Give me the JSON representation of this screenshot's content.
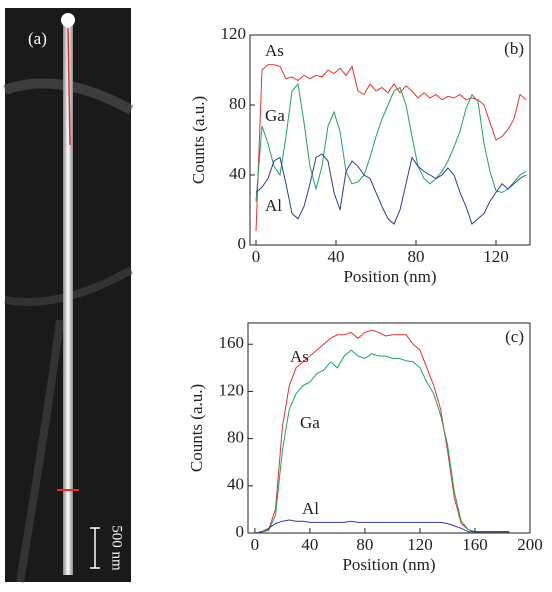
{
  "image_panel": {
    "label": "(a)",
    "scale_bar": "500 nm"
  },
  "chart_data": [
    {
      "type": "line",
      "panel_label": "(b)",
      "x_label": "Position (nm)",
      "y_label": "Counts (a.u.)",
      "xlim": [
        -3,
        137
      ],
      "ylim": [
        0,
        120
      ],
      "xticks": [
        0,
        40,
        80,
        120
      ],
      "yticks": [
        0,
        40,
        80,
        120
      ],
      "x": [
        0,
        3,
        6,
        9,
        12,
        15,
        18,
        21,
        24,
        27,
        30,
        33,
        36,
        39,
        42,
        45,
        48,
        51,
        54,
        57,
        60,
        63,
        66,
        69,
        72,
        75,
        78,
        81,
        84,
        87,
        90,
        93,
        96,
        99,
        102,
        105,
        108,
        111,
        114,
        117,
        120,
        123,
        126,
        129,
        132,
        135
      ],
      "series": [
        {
          "name": "As",
          "color": "#e8302c",
          "values": [
            8,
            100,
            103,
            103,
            102,
            95,
            96,
            94,
            97,
            95,
            97,
            96,
            100,
            98,
            101,
            97,
            102,
            88,
            86,
            92,
            88,
            90,
            87,
            92,
            87,
            91,
            88,
            84,
            87,
            84,
            86,
            83,
            85,
            84,
            86,
            83,
            84,
            83,
            80,
            70,
            60,
            62,
            66,
            72,
            86,
            83
          ]
        },
        {
          "name": "Ga",
          "color": "#1fa35a",
          "values": [
            25,
            68,
            58,
            45,
            40,
            62,
            88,
            92,
            70,
            45,
            32,
            45,
            68,
            76,
            65,
            42,
            35,
            36,
            40,
            50,
            62,
            72,
            80,
            88,
            90,
            80,
            62,
            45,
            38,
            35,
            38,
            42,
            48,
            56,
            65,
            78,
            86,
            82,
            58,
            42,
            31,
            30,
            32,
            36,
            40,
            42
          ]
        },
        {
          "name": "Al",
          "color": "#2c3a9c",
          "values": [
            30,
            33,
            38,
            48,
            50,
            35,
            18,
            15,
            22,
            35,
            50,
            52,
            48,
            30,
            20,
            42,
            48,
            45,
            40,
            38,
            30,
            22,
            15,
            12,
            20,
            35,
            50,
            45,
            42,
            40,
            38,
            40,
            44,
            40,
            30,
            22,
            12,
            15,
            18,
            25,
            30,
            35,
            32,
            35,
            38,
            40
          ]
        }
      ]
    },
    {
      "type": "line",
      "panel_label": "(c)",
      "x_label": "Position (nm)",
      "y_label": "Counts (a.u.)",
      "xlim": [
        -5,
        200
      ],
      "ylim": [
        0,
        178
      ],
      "xticks": [
        0,
        40,
        80,
        120,
        160,
        200
      ],
      "yticks": [
        0,
        40,
        80,
        120,
        160
      ],
      "x": [
        0,
        5,
        10,
        15,
        20,
        25,
        30,
        35,
        40,
        45,
        50,
        55,
        60,
        65,
        70,
        75,
        80,
        85,
        90,
        95,
        100,
        105,
        110,
        115,
        120,
        125,
        130,
        135,
        140,
        145,
        150,
        155,
        160,
        165,
        170,
        175,
        180,
        185
      ],
      "series": [
        {
          "name": "As",
          "color": "#e8302c",
          "values": [
            0,
            1,
            3,
            20,
            90,
            125,
            140,
            145,
            150,
            155,
            160,
            165,
            168,
            168,
            170,
            165,
            170,
            172,
            170,
            167,
            168,
            168,
            168,
            160,
            155,
            140,
            125,
            105,
            70,
            30,
            8,
            3,
            1,
            1,
            1,
            1,
            1,
            1
          ]
        },
        {
          "name": "Ga",
          "color": "#1fa35a",
          "values": [
            0,
            1,
            2,
            15,
            70,
            105,
            118,
            125,
            128,
            135,
            138,
            145,
            140,
            150,
            155,
            150,
            148,
            152,
            150,
            150,
            148,
            148,
            146,
            145,
            140,
            128,
            118,
            100,
            75,
            35,
            10,
            3,
            1,
            1,
            1,
            1,
            1,
            1
          ]
        },
        {
          "name": "Al",
          "color": "#2c3a9c",
          "values": [
            0,
            1,
            4,
            8,
            10,
            11,
            10,
            10,
            9,
            9,
            9,
            9,
            9,
            9,
            10,
            9,
            9,
            9,
            9,
            9,
            9,
            9,
            9,
            9,
            9,
            9,
            9,
            9,
            8,
            6,
            4,
            1,
            1,
            1,
            1,
            1,
            1,
            1
          ]
        }
      ]
    }
  ]
}
